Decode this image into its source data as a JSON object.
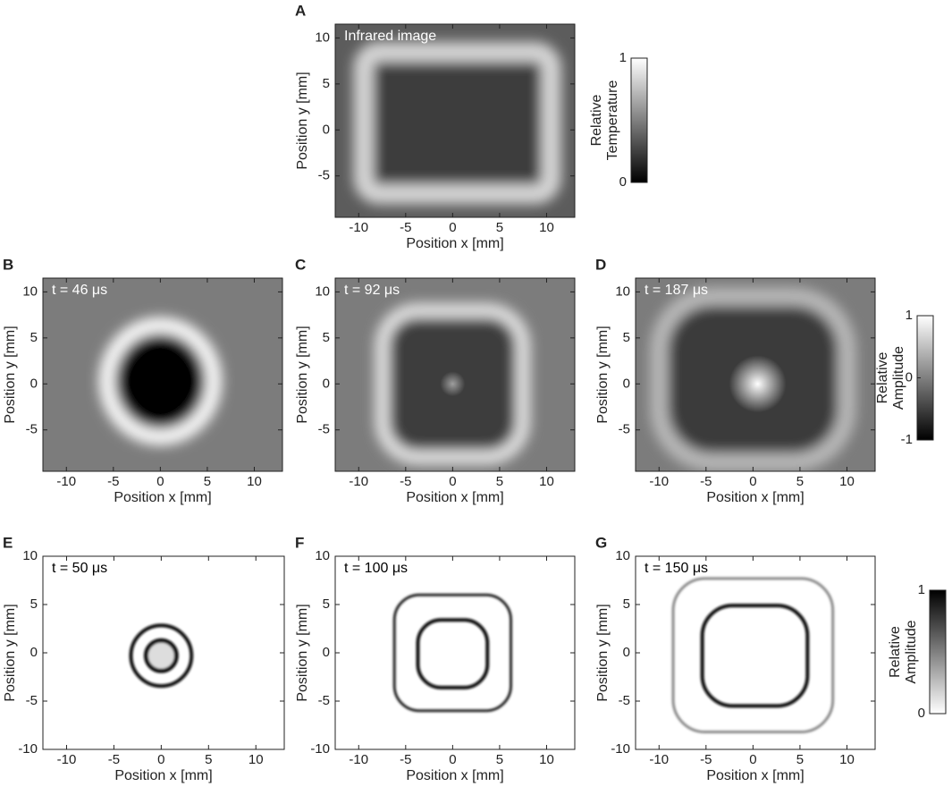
{
  "chart_data": [
    {
      "type": "heatmap",
      "panel": "A",
      "annotation": "Infrared image",
      "annotation_color": "#ffffff",
      "xlabel": "Position x [mm]",
      "ylabel": "Position y [mm]",
      "xlim": [
        -12.5,
        13
      ],
      "ylim": [
        -9.5,
        11.5
      ],
      "xticks": [
        -10,
        -5,
        0,
        5,
        10
      ],
      "yticks": [
        -5,
        0,
        5,
        10
      ],
      "colorbar": {
        "label": [
          "Relative",
          "Temperature"
        ],
        "lim": [
          0,
          1
        ],
        "ticks": [
          0,
          1
        ]
      }
    },
    {
      "type": "heatmap",
      "panel": "B",
      "annotation": "t = 46 μs",
      "annotation_color": "#ffffff",
      "xlabel": "Position x [mm]",
      "ylabel": "Position y [mm]",
      "xlim": [
        -12.5,
        13
      ],
      "ylim": [
        -9.5,
        11.5
      ],
      "xticks": [
        -10,
        -5,
        0,
        5,
        10
      ],
      "yticks": [
        -5,
        0,
        5,
        10
      ]
    },
    {
      "type": "heatmap",
      "panel": "C",
      "annotation": "t = 92 μs",
      "annotation_color": "#ffffff",
      "xlabel": "Position x [mm]",
      "ylabel": "Position y [mm]",
      "xlim": [
        -12.5,
        13
      ],
      "ylim": [
        -9.5,
        11.5
      ],
      "xticks": [
        -10,
        -5,
        0,
        5,
        10
      ],
      "yticks": [
        -5,
        0,
        5,
        10
      ]
    },
    {
      "type": "heatmap",
      "panel": "D",
      "annotation": "t = 187 μs",
      "annotation_color": "#ffffff",
      "xlabel": "Position x [mm]",
      "ylabel": "Position y [mm]",
      "xlim": [
        -12.5,
        13
      ],
      "ylim": [
        -9.5,
        11.5
      ],
      "xticks": [
        -10,
        -5,
        0,
        5,
        10
      ],
      "yticks": [
        -5,
        0,
        5,
        10
      ],
      "colorbar": {
        "label": [
          "Relative",
          "Amplitude"
        ],
        "lim": [
          -1,
          1
        ],
        "ticks": [
          -1,
          0,
          1
        ]
      }
    },
    {
      "type": "heatmap",
      "panel": "E",
      "annotation": "t = 50 μs",
      "annotation_color": "#000000",
      "xlabel": "Position x [mm]",
      "ylabel": "Position y [mm]",
      "xlim": [
        -12.5,
        13
      ],
      "ylim": [
        -10,
        10
      ],
      "xticks": [
        -10,
        -5,
        0,
        5,
        10
      ],
      "yticks": [
        -10,
        -5,
        0,
        5,
        10
      ]
    },
    {
      "type": "heatmap",
      "panel": "F",
      "annotation": "t = 100 μs",
      "annotation_color": "#000000",
      "xlabel": "Position x [mm]",
      "ylabel": "Position y [mm]",
      "xlim": [
        -12.5,
        13
      ],
      "ylim": [
        -10,
        10
      ],
      "xticks": [
        -10,
        -5,
        0,
        5,
        10
      ],
      "yticks": [
        -10,
        -5,
        0,
        5,
        10
      ]
    },
    {
      "type": "heatmap",
      "panel": "G",
      "annotation": "t = 150 μs",
      "annotation_color": "#000000",
      "xlabel": "Position x [mm]",
      "ylabel": "Position y [mm]",
      "xlim": [
        -12.5,
        13
      ],
      "ylim": [
        -10,
        10
      ],
      "xticks": [
        -10,
        -5,
        0,
        5,
        10
      ],
      "yticks": [
        -10,
        -5,
        0,
        5,
        10
      ],
      "colorbar": {
        "label": [
          "Relative",
          "Amplitude"
        ],
        "lim": [
          0,
          1
        ],
        "ticks": [
          0,
          1
        ]
      }
    }
  ]
}
